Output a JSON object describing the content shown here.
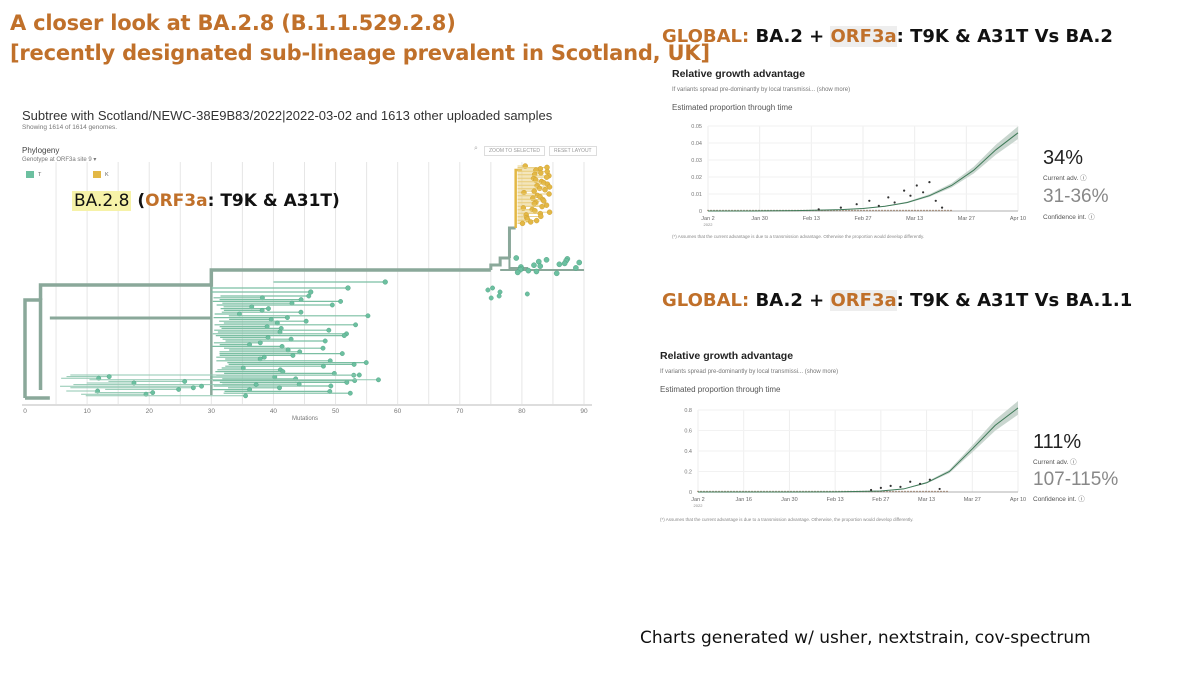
{
  "slide": {
    "title_line1": "A closer look at BA.2.8 (B.1.1.529.2.8)",
    "title_line2": "[recently designated sub-lineage prevalent in Scotland, UK]",
    "footer": "Charts generated w/ usher, nextstrain, cov-spectrum",
    "accent_color": "#c0702a"
  },
  "tree": {
    "title": "Subtree with Scotland/NEWC-38E9B83/2022|2022-03-02 and 1613 other uploaded samples",
    "subtitle": "Showing 1614 of 1614 genomes.",
    "phylogeny_label": "Phylogeny",
    "genotype_label": "Genotype at ORF3a site 9",
    "button_zoom": "ZOOM TO SELECTED",
    "button_reset": "RESET LAYOUT",
    "legend": [
      {
        "label": "T",
        "color": "#6cc0a0"
      },
      {
        "label": "K",
        "color": "#e3b845"
      }
    ],
    "annotation_name": "BA.2.8",
    "annotation_detail_prefix": "(",
    "annotation_gene": "ORF3a",
    "annotation_detail_suffix": ": T9K & A31T)",
    "xaxis_label": "Mutations",
    "xticks": [
      "0",
      "10",
      "20",
      "30",
      "40",
      "50",
      "60",
      "70",
      "80",
      "90"
    ]
  },
  "panel1": {
    "header_tag": "GLOBAL:",
    "header_main": "BA.2 + ",
    "header_gene": "ORF3a",
    "header_rest": ": T9K & A31T Vs BA.2",
    "title": "Relative growth advantage",
    "desc": "If variants spread pre-dominantly by local transmissi...",
    "desc_more": "(show more)",
    "est_label": "Estimated proportion through time",
    "advantage": "34%",
    "advantage_label": "Current adv.",
    "ci": "31-36%",
    "ci_label": "Confidence int.",
    "note": "(*) Assumes that the current advantage is due to a transmission advantage. Otherwise the proportion would develop differently."
  },
  "panel2": {
    "header_tag": "GLOBAL:",
    "header_main": "BA.2 + ",
    "header_gene": "ORF3a",
    "header_rest": ": T9K & A31T Vs BA.1.1",
    "title": "Relative growth advantage",
    "desc": "If variants spread pre-dominantly by local transmissi...",
    "desc_more": "(show more)",
    "est_label": "Estimated proportion through time",
    "advantage": "111%",
    "advantage_label": "Current adv.",
    "ci": "107-115%",
    "ci_label": "Confidence int.",
    "note": "(*) Assumes that the current advantage is due to a transmission advantage. Otherwise, the proportion would develop differently."
  },
  "chart_data": [
    {
      "type": "scatter",
      "title": "Subtree with Scotland/NEWC-38E9B83/2022|2022-03-02 and 1613 other uploaded samples",
      "xlabel": "Mutations",
      "xlim": [
        0,
        91
      ],
      "xticks": [
        0,
        10,
        20,
        30,
        40,
        50,
        60,
        70,
        80,
        90
      ],
      "series": [
        {
          "name": "T",
          "color": "#6cc0a0"
        },
        {
          "name": "K",
          "color": "#e3b845"
        }
      ],
      "grid": true
    },
    {
      "type": "line",
      "title": "Estimated proportion through time",
      "xticks": [
        "Jan 2",
        "Jan 30",
        "Feb 13",
        "Feb 27",
        "Mar 13",
        "Mar 27",
        "Apr 10"
      ],
      "xtick_sub": "2022",
      "ylim": [
        0,
        0.05
      ],
      "yticks": [
        "0",
        "0.01",
        "0.02",
        "0.03",
        "0.04",
        "0.05"
      ],
      "x": [
        "Jan 2",
        "Jan 16",
        "Jan 30",
        "Feb 13",
        "Feb 20",
        "Feb 27",
        "Mar 6",
        "Mar 13",
        "Mar 20",
        "Mar 27",
        "Apr 3",
        "Apr 10"
      ],
      "fit": [
        0,
        0,
        0.0002,
        0.0008,
        0.0015,
        0.0028,
        0.005,
        0.009,
        0.015,
        0.024,
        0.036,
        0.046
      ],
      "points_x": [
        "Feb 6",
        "Feb 13",
        "Feb 18",
        "Feb 22",
        "Feb 25",
        "Feb 28",
        "Mar 2",
        "Mar 5",
        "Mar 7",
        "Mar 9",
        "Mar 11",
        "Mar 13",
        "Mar 15",
        "Mar 17"
      ],
      "points_y": [
        0.001,
        0.002,
        0.004,
        0.006,
        0.003,
        0.008,
        0.005,
        0.012,
        0.009,
        0.015,
        0.011,
        0.017,
        0.006,
        0.002
      ],
      "grid": true
    },
    {
      "type": "line",
      "title": "Estimated proportion through time",
      "xticks": [
        "Jan 2",
        "Jan 16",
        "Jan 30",
        "Feb 13",
        "Feb 27",
        "Mar 13",
        "Mar 27",
        "Apr 10"
      ],
      "xtick_sub": "2022",
      "ylim": [
        0,
        0.8
      ],
      "yticks": [
        "0",
        "0.2",
        "0.4",
        "0.6",
        "0.8"
      ],
      "x": [
        "Jan 2",
        "Jan 16",
        "Jan 30",
        "Feb 13",
        "Feb 27",
        "Mar 6",
        "Mar 13",
        "Mar 20",
        "Mar 27",
        "Apr 3",
        "Apr 10"
      ],
      "fit": [
        0,
        0,
        0,
        0.001,
        0.01,
        0.03,
        0.09,
        0.2,
        0.42,
        0.65,
        0.82
      ],
      "points_x": [
        "Feb 24",
        "Feb 27",
        "Mar 2",
        "Mar 5",
        "Mar 8",
        "Mar 11",
        "Mar 14",
        "Mar 17"
      ],
      "points_y": [
        0.02,
        0.04,
        0.06,
        0.05,
        0.1,
        0.08,
        0.12,
        0.03
      ],
      "grid": true
    }
  ]
}
